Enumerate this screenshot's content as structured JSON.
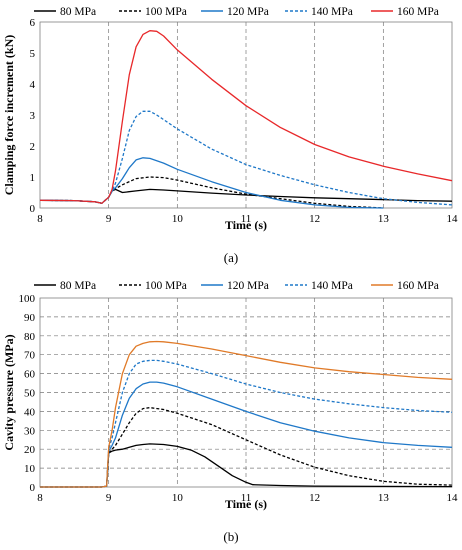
{
  "panel_labels": [
    "(a)",
    "(b)"
  ],
  "chart_data": [
    {
      "type": "line",
      "panel": "(a)",
      "title": "",
      "xlabel": "Time (s)",
      "ylabel": "Clamping force increment (kN)",
      "xlim": [
        8,
        14
      ],
      "ylim": [
        0,
        6
      ],
      "xticks": [
        8,
        9,
        10,
        11,
        12,
        13,
        14
      ],
      "yticks": [
        0,
        1,
        2,
        3,
        4,
        5,
        6
      ],
      "grid": "dashed vertical",
      "legend": "top",
      "series": [
        {
          "name": "80 MPa",
          "color": "#000000",
          "dash": "solid",
          "x": [
            8,
            8.5,
            8.8,
            8.9,
            9.0,
            9.05,
            9.1,
            9.2,
            9.4,
            9.6,
            9.8,
            10.0,
            10.5,
            11.0,
            11.5,
            12.0,
            12.5,
            13.0,
            13.5,
            14.0
          ],
          "y": [
            0.25,
            0.24,
            0.2,
            0.15,
            0.35,
            0.55,
            0.6,
            0.5,
            0.55,
            0.6,
            0.58,
            0.55,
            0.48,
            0.42,
            0.37,
            0.33,
            0.3,
            0.27,
            0.24,
            0.22
          ]
        },
        {
          "name": "100 MPa",
          "color": "#000000",
          "dash": "dashed",
          "x": [
            8,
            8.5,
            8.8,
            8.9,
            9.0,
            9.05,
            9.1,
            9.2,
            9.4,
            9.6,
            9.8,
            10.0,
            10.5,
            11.0,
            11.5,
            12.0,
            12.5,
            13.0
          ],
          "y": [
            0.25,
            0.24,
            0.2,
            0.15,
            0.35,
            0.55,
            0.62,
            0.75,
            0.95,
            1.0,
            0.98,
            0.9,
            0.65,
            0.45,
            0.3,
            0.15,
            0.05,
            0.0
          ]
        },
        {
          "name": "120 MPa",
          "color": "#1f78c8",
          "dash": "solid",
          "x": [
            8,
            8.5,
            8.8,
            8.9,
            9.0,
            9.05,
            9.1,
            9.2,
            9.3,
            9.4,
            9.5,
            9.6,
            9.8,
            10.0,
            10.5,
            11.0,
            11.5,
            12.0,
            12.5,
            13.0
          ],
          "y": [
            0.25,
            0.24,
            0.2,
            0.15,
            0.35,
            0.55,
            0.65,
            0.95,
            1.3,
            1.55,
            1.62,
            1.6,
            1.45,
            1.25,
            0.85,
            0.5,
            0.25,
            0.1,
            0.02,
            0.0
          ]
        },
        {
          "name": "140 MPa",
          "color": "#1f78c8",
          "dash": "dashed",
          "x": [
            8,
            8.5,
            8.8,
            8.9,
            9.0,
            9.05,
            9.1,
            9.2,
            9.3,
            9.4,
            9.5,
            9.6,
            9.7,
            9.8,
            10.0,
            10.5,
            11.0,
            11.5,
            12.0,
            12.5,
            13.0,
            13.5,
            14.0
          ],
          "y": [
            0.25,
            0.24,
            0.2,
            0.15,
            0.35,
            0.55,
            0.8,
            1.6,
            2.5,
            2.95,
            3.12,
            3.12,
            3.0,
            2.85,
            2.55,
            1.9,
            1.4,
            1.05,
            0.75,
            0.5,
            0.3,
            0.18,
            0.1
          ]
        },
        {
          "name": "160 MPa",
          "color": "#e8282a",
          "dash": "solid",
          "x": [
            8,
            8.5,
            8.8,
            8.9,
            9.0,
            9.05,
            9.1,
            9.2,
            9.3,
            9.4,
            9.5,
            9.6,
            9.7,
            9.8,
            10.0,
            10.5,
            11.0,
            11.5,
            12.0,
            12.5,
            13.0,
            13.5,
            14.0
          ],
          "y": [
            0.25,
            0.24,
            0.2,
            0.15,
            0.35,
            0.6,
            1.2,
            2.8,
            4.3,
            5.2,
            5.6,
            5.72,
            5.7,
            5.55,
            5.1,
            4.15,
            3.3,
            2.6,
            2.05,
            1.65,
            1.35,
            1.1,
            0.88
          ]
        }
      ]
    },
    {
      "type": "line",
      "panel": "(b)",
      "title": "",
      "xlabel": "Time (s)",
      "ylabel": "Cavity pressure (MPa)",
      "xlim": [
        8,
        14
      ],
      "ylim": [
        0,
        100
      ],
      "xticks": [
        8,
        9,
        10,
        11,
        12,
        13,
        14
      ],
      "yticks": [
        0,
        10,
        20,
        30,
        40,
        50,
        60,
        70,
        80,
        90,
        100
      ],
      "grid": "dashed both",
      "legend": "top",
      "series": [
        {
          "name": "80 MPa",
          "color": "#000000",
          "dash": "solid",
          "x": [
            8,
            8.9,
            8.97,
            9.0,
            9.05,
            9.1,
            9.2,
            9.3,
            9.4,
            9.5,
            9.6,
            9.8,
            10.0,
            10.2,
            10.4,
            10.6,
            10.8,
            11.0,
            11.1,
            11.5,
            12.0,
            13.0,
            14.0
          ],
          "y": [
            0,
            0,
            0.5,
            18,
            19,
            19.5,
            20,
            21,
            22,
            22.5,
            22.8,
            22.5,
            21.5,
            19.5,
            16,
            11,
            6,
            2.5,
            1.2,
            0.8,
            0.5,
            0.3,
            0.2
          ]
        },
        {
          "name": "100 MPa",
          "color": "#000000",
          "dash": "dashed",
          "x": [
            8,
            8.9,
            8.97,
            9.0,
            9.05,
            9.1,
            9.2,
            9.3,
            9.4,
            9.5,
            9.6,
            9.8,
            10.0,
            10.5,
            11.0,
            11.5,
            12.0,
            12.5,
            13.0,
            13.5,
            14.0
          ],
          "y": [
            0,
            0,
            0.5,
            18,
            20,
            22,
            28,
            34,
            39,
            41.5,
            42,
            41,
            39,
            33,
            25,
            17,
            10.5,
            6,
            3,
            1.5,
            1
          ]
        },
        {
          "name": "120 MPa",
          "color": "#1f78c8",
          "dash": "solid",
          "x": [
            8,
            8.9,
            8.97,
            9.0,
            9.05,
            9.1,
            9.2,
            9.3,
            9.4,
            9.5,
            9.6,
            9.7,
            9.8,
            10.0,
            10.5,
            11.0,
            11.5,
            12.0,
            12.5,
            13.0,
            13.5,
            14.0
          ],
          "y": [
            0,
            0,
            0.5,
            19,
            22,
            26,
            38,
            47,
            52,
            54.5,
            55.5,
            55.5,
            55,
            53,
            46.5,
            40,
            34,
            29.5,
            26,
            23.5,
            22,
            21
          ]
        },
        {
          "name": "140 MPa",
          "color": "#1f78c8",
          "dash": "dashed",
          "x": [
            8,
            8.9,
            8.97,
            9.0,
            9.05,
            9.1,
            9.2,
            9.3,
            9.4,
            9.5,
            9.6,
            9.7,
            9.8,
            10.0,
            10.5,
            11.0,
            11.5,
            12.0,
            12.5,
            13.0,
            13.5,
            14.0
          ],
          "y": [
            0,
            0,
            0.5,
            20,
            26,
            34,
            50,
            60,
            65,
            66.5,
            67,
            67,
            66.5,
            65,
            60,
            54.5,
            50,
            46.5,
            44,
            42,
            40.5,
            39.5
          ]
        },
        {
          "name": "160 MPa",
          "color": "#e07a28",
          "dash": "solid",
          "x": [
            8,
            8.9,
            8.97,
            9.0,
            9.05,
            9.1,
            9.2,
            9.3,
            9.4,
            9.5,
            9.6,
            9.7,
            9.8,
            10.0,
            10.5,
            11.0,
            11.5,
            12.0,
            12.5,
            13.0,
            13.5,
            14.0
          ],
          "y": [
            0,
            0,
            0.5,
            21,
            30,
            42,
            60,
            70,
            74.5,
            76,
            76.8,
            77,
            76.8,
            76,
            73,
            69.5,
            66,
            63,
            61,
            59.5,
            58,
            57
          ]
        }
      ]
    }
  ]
}
